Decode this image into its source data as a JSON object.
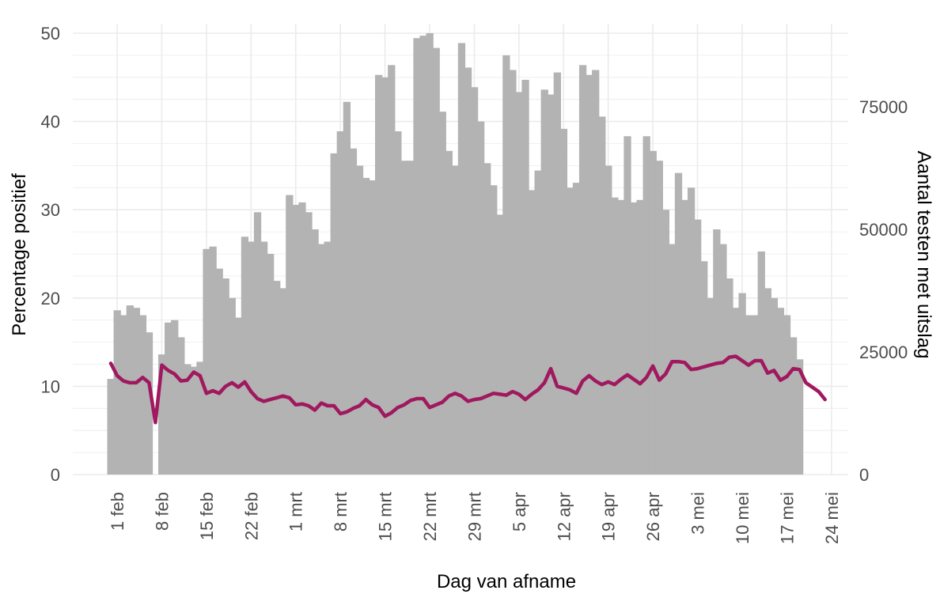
{
  "chart_data": {
    "type": "bar+line",
    "xlabel": "Dag van afname",
    "ylabel_left": "Percentage positief",
    "ylabel_right": "Aantal testen met uitslag",
    "y_left_lim": [
      0,
      50
    ],
    "y_left_ticks": [
      0,
      10,
      20,
      30,
      40,
      50
    ],
    "y_right_lim": [
      0,
      90000
    ],
    "y_right_ticks": [
      0,
      25000,
      50000,
      75000
    ],
    "x_tick_labels": [
      "1 feb",
      "8 feb",
      "15 feb",
      "22 feb",
      "1 mrt",
      "8 mrt",
      "15 mrt",
      "22 mrt",
      "29 mrt",
      "5 apr",
      "12 apr",
      "19 apr",
      "26 apr",
      "3 mei",
      "10 mei",
      "17 mei",
      "24 mei"
    ],
    "grid": true,
    "legend": "none",
    "colors": {
      "bars": "#b3b3b3",
      "line": "#a0185e",
      "grid": "#ebebeb"
    },
    "start_date": "31 jan",
    "series": [
      {
        "type": "bar",
        "axis": "right",
        "values": [
          19500,
          33500,
          32500,
          34500,
          34000,
          32500,
          29000,
          0,
          24500,
          31000,
          31500,
          28000,
          22500,
          22000,
          23000,
          46000,
          46500,
          42000,
          40000,
          36000,
          32000,
          48500,
          47500,
          53500,
          47500,
          45000,
          39500,
          38000,
          57000,
          55000,
          55500,
          53500,
          50000,
          47000,
          47500,
          65500,
          70000,
          76000,
          66500,
          63000,
          60500,
          60000,
          81500,
          81000,
          83500,
          70000,
          64000,
          64000,
          89000,
          89500,
          90000,
          87000,
          74000,
          66000,
          63000,
          88000,
          83000,
          79000,
          72000,
          63500,
          59000,
          53000,
          85500,
          82500,
          78000,
          80500,
          58000,
          62000,
          78500,
          77500,
          82000,
          70500,
          58500,
          59500,
          83500,
          81500,
          82500,
          73000,
          63000,
          56500,
          56000,
          69000,
          55500,
          56000,
          69000,
          66000,
          64000,
          54000,
          47000,
          61500,
          56000,
          58500,
          52000,
          43500,
          36000,
          50000,
          47000,
          40000,
          34000,
          37000,
          32500,
          32500,
          45500,
          38000,
          36000,
          34000,
          32500,
          28000,
          23500
        ]
      },
      {
        "type": "line",
        "axis": "left",
        "values": [
          12.6,
          11.2,
          10.6,
          10.4,
          10.4,
          11,
          10.4,
          5.9,
          12.4,
          11.8,
          11.4,
          10.6,
          10.7,
          11.6,
          11.2,
          9.2,
          9.5,
          9.2,
          10,
          10.4,
          9.9,
          10.5,
          9.4,
          8.6,
          8.3,
          8.5,
          8.7,
          8.9,
          8.7,
          7.9,
          8,
          7.8,
          7.3,
          8.1,
          7.8,
          7.8,
          6.9,
          7.1,
          7.5,
          7.8,
          8.5,
          7.9,
          7.6,
          6.6,
          7,
          7.6,
          7.9,
          8.4,
          8.6,
          8.6,
          7.6,
          7.9,
          8.2,
          8.9,
          9.2,
          8.9,
          8.3,
          8.5,
          8.6,
          8.9,
          9.2,
          9.1,
          9,
          9.4,
          9.1,
          8.5,
          9.1,
          9.6,
          10.4,
          12,
          10,
          9.8,
          9.6,
          9.2,
          10.6,
          11.2,
          10.6,
          10.2,
          10.5,
          10.2,
          10.8,
          11.3,
          10.8,
          10.3,
          11,
          12.3,
          10.7,
          11.4,
          12.8,
          12.8,
          12.7,
          11.9,
          12,
          12.2,
          12.4,
          12.6,
          12.7,
          13.3,
          13.4,
          12.9,
          12.4,
          12.9,
          12.9,
          11.5,
          11.8,
          10.7,
          11.1,
          12,
          11.9,
          10.4,
          9.9,
          9.4,
          8.5
        ]
      }
    ]
  }
}
